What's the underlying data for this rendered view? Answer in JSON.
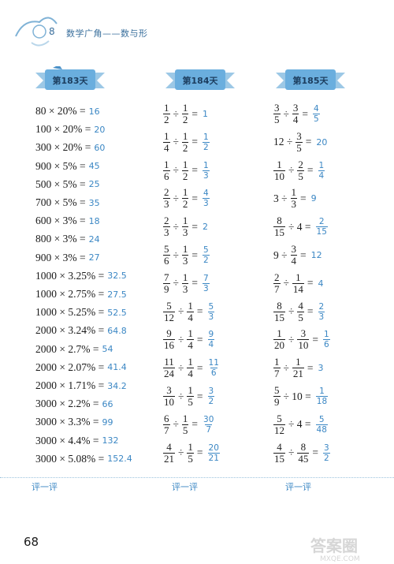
{
  "header": {
    "chapter": "8",
    "title": "数学广角——数与形"
  },
  "ribbons": [
    "第183天",
    "第184天",
    "第185天"
  ],
  "col1": [
    {
      "e": "80 × 20% =",
      "a": "16"
    },
    {
      "e": "100 × 20% =",
      "a": "20"
    },
    {
      "e": "300 × 20% =",
      "a": "60"
    },
    {
      "e": "900 × 5% =",
      "a": "45"
    },
    {
      "e": "500 × 5% =",
      "a": "25"
    },
    {
      "e": "700 × 5% =",
      "a": "35"
    },
    {
      "e": "600 × 3% =",
      "a": "18"
    },
    {
      "e": "800 × 3% =",
      "a": "24"
    },
    {
      "e": "900 × 3% =",
      "a": "27"
    },
    {
      "e": "1000 × 3.25% =",
      "a": "32.5"
    },
    {
      "e": "1000 × 2.75% =",
      "a": "27.5"
    },
    {
      "e": "1000 × 5.25% =",
      "a": "52.5"
    },
    {
      "e": "2000 × 3.24% =",
      "a": "64.8"
    },
    {
      "e": "2000 × 2.7% =",
      "a": "54"
    },
    {
      "e": "2000 × 2.07% =",
      "a": "41.4"
    },
    {
      "e": "2000 × 1.71% =",
      "a": "34.2"
    },
    {
      "e": "3000 × 2.2% =",
      "a": "66"
    },
    {
      "e": "3000 × 3.3% =",
      "a": "99"
    },
    {
      "e": "3000 × 4.4% =",
      "a": "132"
    },
    {
      "e": "3000 × 5.08% =",
      "a": "152.4"
    }
  ],
  "col2": [
    {
      "t": [
        [
          "1",
          "2"
        ],
        "÷",
        [
          "1",
          "2"
        ],
        "="
      ],
      "a": "1"
    },
    {
      "t": [
        [
          "1",
          "4"
        ],
        "÷",
        [
          "1",
          "2"
        ],
        "="
      ],
      "a": [
        "1",
        "2"
      ]
    },
    {
      "t": [
        [
          "1",
          "6"
        ],
        "÷",
        [
          "1",
          "2"
        ],
        "="
      ],
      "a": [
        "1",
        "3"
      ]
    },
    {
      "t": [
        [
          "2",
          "3"
        ],
        "÷",
        [
          "1",
          "2"
        ],
        "="
      ],
      "a": [
        "4",
        "3"
      ]
    },
    {
      "t": [
        [
          "2",
          "3"
        ],
        "÷",
        [
          "1",
          "3"
        ],
        "="
      ],
      "a": "2"
    },
    {
      "t": [
        [
          "5",
          "6"
        ],
        "÷",
        [
          "1",
          "3"
        ],
        "="
      ],
      "a": [
        "5",
        "2"
      ]
    },
    {
      "t": [
        [
          "7",
          "9"
        ],
        "÷",
        [
          "1",
          "3"
        ],
        "="
      ],
      "a": [
        "7",
        "3"
      ]
    },
    {
      "t": [
        [
          "5",
          "12"
        ],
        "÷",
        [
          "1",
          "4"
        ],
        "="
      ],
      "a": [
        "5",
        "3"
      ]
    },
    {
      "t": [
        [
          "9",
          "16"
        ],
        "÷",
        [
          "1",
          "4"
        ],
        "="
      ],
      "a": [
        "9",
        "4"
      ]
    },
    {
      "t": [
        [
          "11",
          "24"
        ],
        "÷",
        [
          "1",
          "4"
        ],
        "="
      ],
      "a": [
        "11",
        "6"
      ]
    },
    {
      "t": [
        [
          "3",
          "10"
        ],
        "÷",
        [
          "1",
          "5"
        ],
        "="
      ],
      "a": [
        "3",
        "2"
      ]
    },
    {
      "t": [
        [
          "6",
          "7"
        ],
        "÷",
        [
          "1",
          "5"
        ],
        "="
      ],
      "a": [
        "30",
        "7"
      ]
    },
    {
      "t": [
        [
          "4",
          "21"
        ],
        "÷",
        [
          "1",
          "5"
        ],
        "="
      ],
      "a": [
        "20",
        "21"
      ]
    }
  ],
  "col3": [
    {
      "t": [
        [
          "3",
          "5"
        ],
        "÷",
        [
          "3",
          "4"
        ],
        "="
      ],
      "a": [
        "4",
        "5"
      ]
    },
    {
      "t": [
        "12 ÷",
        [
          "3",
          "5"
        ],
        "="
      ],
      "a": "20"
    },
    {
      "t": [
        [
          "1",
          "10"
        ],
        "÷",
        [
          "2",
          "5"
        ],
        "="
      ],
      "a": [
        "1",
        "4"
      ]
    },
    {
      "t": [
        "3 ÷",
        [
          "1",
          "3"
        ],
        "="
      ],
      "a": "9"
    },
    {
      "t": [
        [
          "8",
          "15"
        ],
        "÷ 4 ="
      ],
      "a": [
        "2",
        "15"
      ]
    },
    {
      "t": [
        "9 ÷",
        [
          "3",
          "4"
        ],
        "="
      ],
      "a": "12"
    },
    {
      "t": [
        [
          "2",
          "7"
        ],
        "÷",
        [
          "1",
          "14"
        ],
        "="
      ],
      "a": "4"
    },
    {
      "t": [
        [
          "8",
          "15"
        ],
        "÷",
        [
          "4",
          "5"
        ],
        "="
      ],
      "a": [
        "2",
        "3"
      ]
    },
    {
      "t": [
        [
          "1",
          "20"
        ],
        "÷",
        [
          "3",
          "10"
        ],
        "="
      ],
      "a": [
        "1",
        "6"
      ]
    },
    {
      "t": [
        [
          "1",
          "7"
        ],
        "÷",
        [
          "1",
          "21"
        ],
        "="
      ],
      "a": "3"
    },
    {
      "t": [
        [
          "5",
          "9"
        ],
        "÷ 10 ="
      ],
      "a": [
        "1",
        "18"
      ]
    },
    {
      "t": [
        [
          "5",
          "12"
        ],
        "÷ 4 ="
      ],
      "a": [
        "5",
        "48"
      ]
    },
    {
      "t": [
        [
          "4",
          "15"
        ],
        "÷",
        [
          "8",
          "45"
        ],
        "="
      ],
      "a": [
        "3",
        "2"
      ]
    }
  ],
  "footer": {
    "eval_label": "评一评",
    "page": "68"
  },
  "colors": {
    "answer": "#3b87c4",
    "ribbon": "#4a90c8"
  }
}
